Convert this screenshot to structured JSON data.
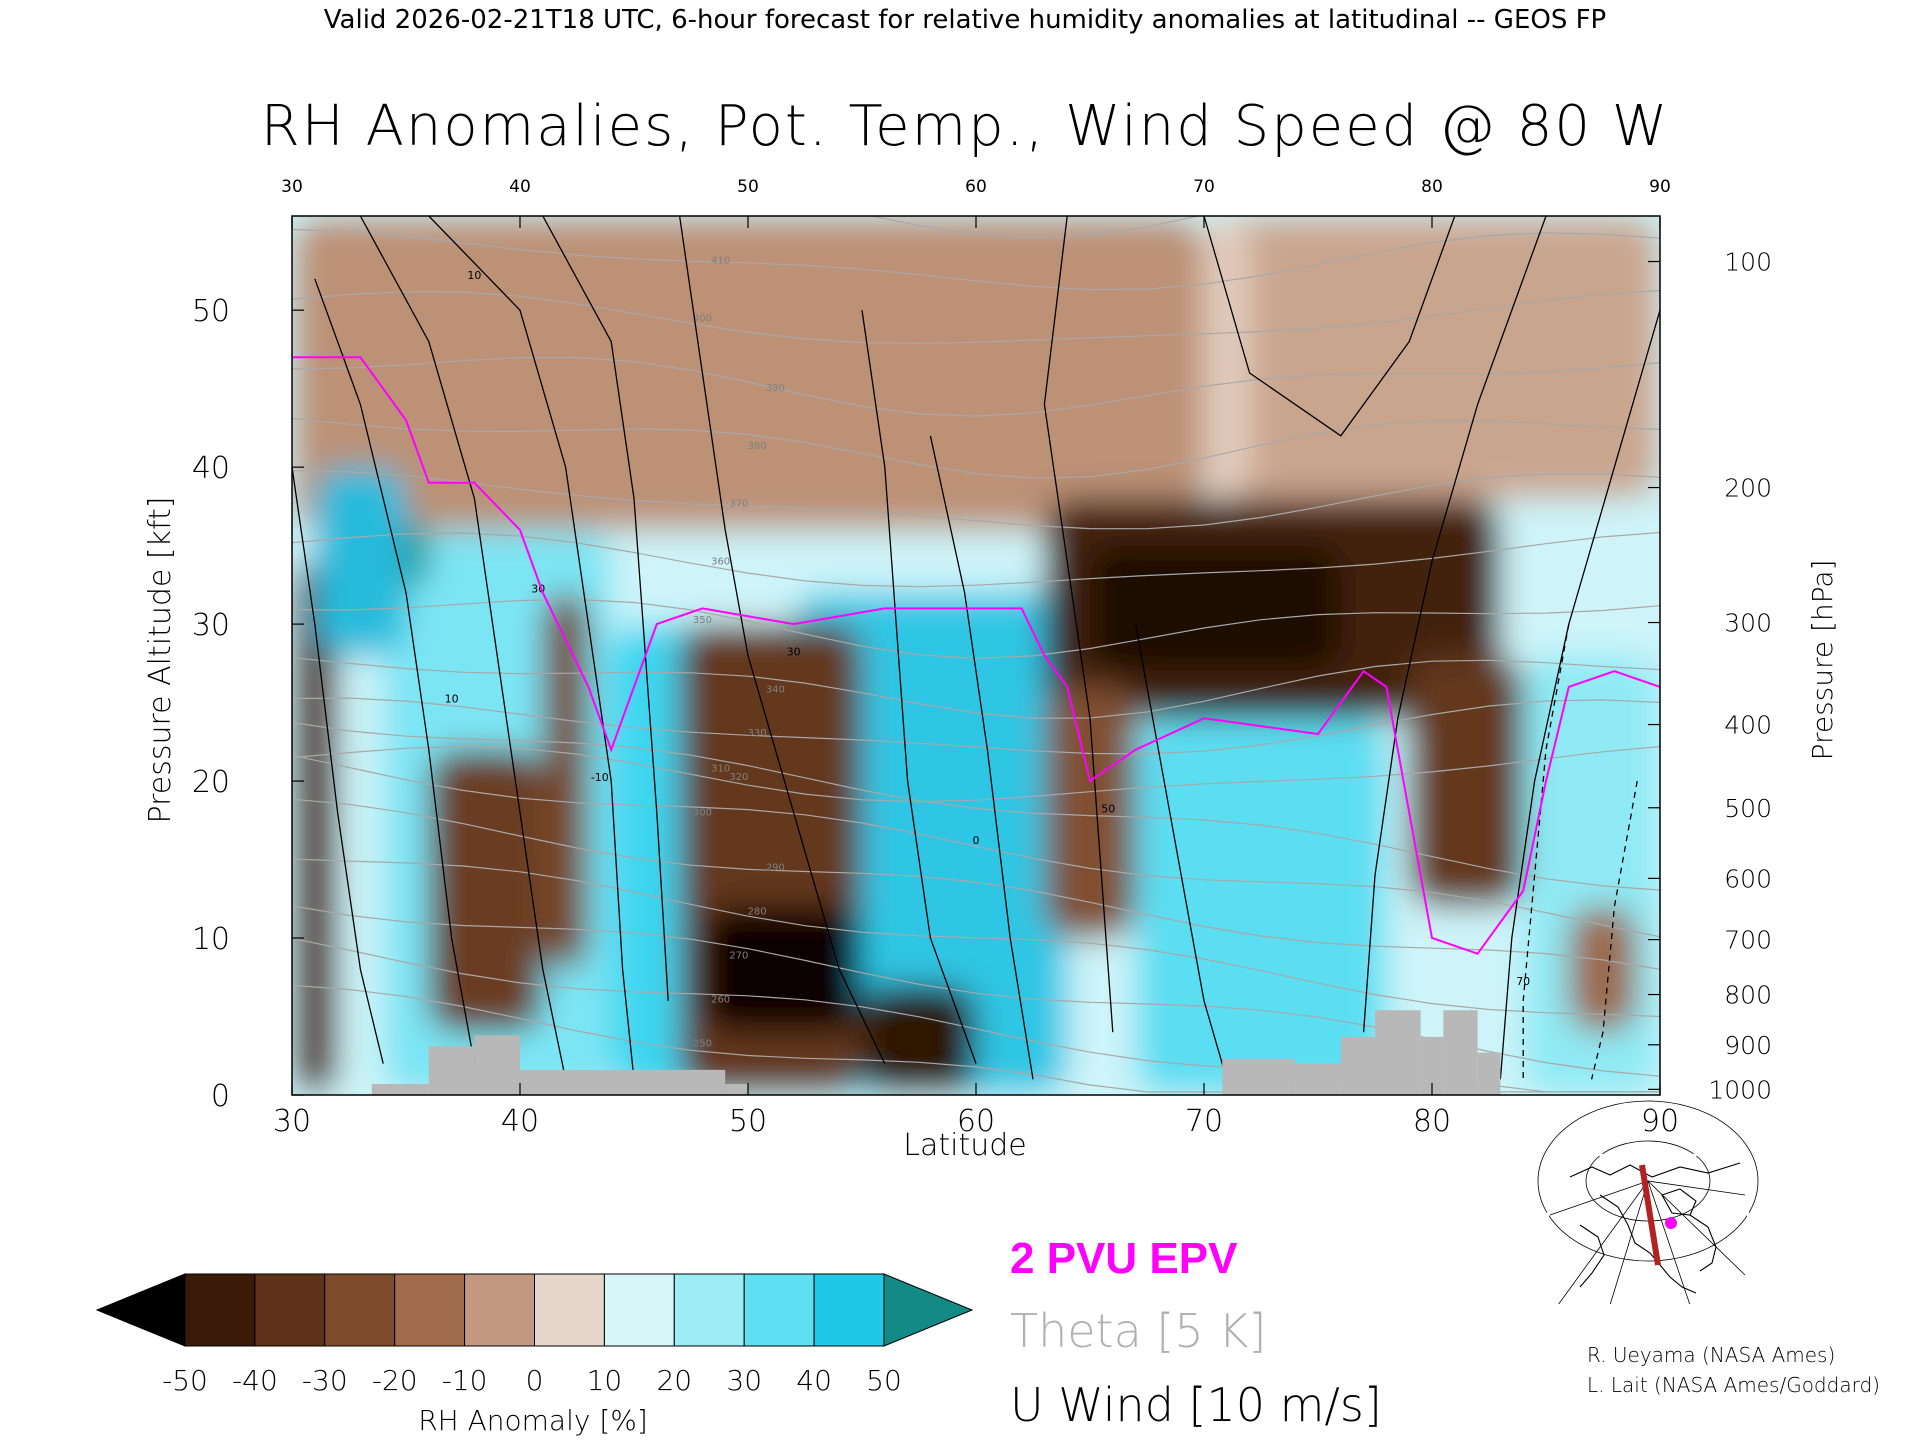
{
  "header": {
    "valid_line": "Valid 2026-02-21T18 UTC, 6-hour forecast for relative humidity anomalies at latitudinal -- GEOS FP"
  },
  "chart_data": {
    "type": "heatmap",
    "title": "RH Anomalies, Pot. Temp., Wind Speed @ 80 W",
    "xlabel": "Latitude",
    "ylabel": "Pressure Altitude [kft]",
    "ylabel_right": "Pressure [hPa]",
    "xlim": [
      30,
      90
    ],
    "ylim": [
      0,
      56
    ],
    "x_ticks": [
      30,
      40,
      50,
      60,
      70,
      80,
      90
    ],
    "y_ticks": [
      0,
      10,
      20,
      30,
      40,
      50
    ],
    "pressure_ticks": [
      {
        "label": "100",
        "kft": 53.1
      },
      {
        "label": "200",
        "kft": 38.7
      },
      {
        "label": "300",
        "kft": 30.1
      },
      {
        "label": "400",
        "kft": 23.6
      },
      {
        "label": "500",
        "kft": 18.3
      },
      {
        "label": "600",
        "kft": 13.8
      },
      {
        "label": "700",
        "kft": 9.9
      },
      {
        "label": "800",
        "kft": 6.4
      },
      {
        "label": "900",
        "kft": 3.2
      },
      {
        "label": "1000",
        "kft": 0.36
      }
    ],
    "colorbar": {
      "label": "RH Anomaly [%]",
      "ticks": [
        "-50",
        "-40",
        "-30",
        "-20",
        "-10",
        "0",
        "10",
        "20",
        "30",
        "40",
        "50"
      ],
      "colors": [
        "#000000",
        "#3a1a08",
        "#5e3218",
        "#7e4c2c",
        "#a06c4c",
        "#c29880",
        "#e6d6cc",
        "#d8f6fa",
        "#9cedf6",
        "#5ee0f2",
        "#20c8e8",
        "#0a96bc",
        "#138a86"
      ]
    },
    "legend": [
      {
        "name": "2 PVU EPV",
        "color": "#ff00ff"
      },
      {
        "name": "Theta [5 K]",
        "color": "#b0b0b0"
      },
      {
        "name": "U Wind [10 m/s]",
        "color": "#000000"
      }
    ],
    "regions": [
      {
        "lat": [
          30,
          90
        ],
        "kft": [
          0,
          56
        ],
        "anomaly": 8
      },
      {
        "lat": [
          34,
          44
        ],
        "kft": [
          0,
          36
        ],
        "anomaly": 25
      },
      {
        "lat": [
          44,
          50
        ],
        "kft": [
          0,
          30
        ],
        "anomaly": 35
      },
      {
        "lat": [
          52,
          64
        ],
        "kft": [
          0,
          32
        ],
        "anomaly": 38
      },
      {
        "lat": [
          67,
          78
        ],
        "kft": [
          0,
          24
        ],
        "anomaly": 30
      },
      {
        "lat": [
          84,
          90
        ],
        "kft": [
          0,
          28
        ],
        "anomaly": 22
      },
      {
        "lat": [
          30,
          70
        ],
        "kft": [
          36,
          56
        ],
        "anomaly": -8
      },
      {
        "lat": [
          70,
          90
        ],
        "kft": [
          38,
          56
        ],
        "anomaly": -6
      },
      {
        "lat": [
          63,
          83
        ],
        "kft": [
          24,
          38
        ],
        "anomaly": -38
      },
      {
        "lat": [
          65,
          76
        ],
        "kft": [
          27,
          35
        ],
        "anomaly": -45
      },
      {
        "lat": [
          79,
          84
        ],
        "kft": [
          12,
          28
        ],
        "anomaly": -30
      },
      {
        "lat": [
          63,
          67
        ],
        "kft": [
          10,
          26
        ],
        "anomaly": -22
      },
      {
        "lat": [
          47,
          55
        ],
        "kft": [
          0,
          30
        ],
        "anomaly": -30
      },
      {
        "lat": [
          48,
          55
        ],
        "kft": [
          4,
          12
        ],
        "anomaly": -48
      },
      {
        "lat": [
          55,
          60
        ],
        "kft": [
          0,
          7
        ],
        "anomaly": -42
      },
      {
        "lat": [
          30,
          32
        ],
        "kft": [
          0,
          34
        ],
        "anomaly": -35
      },
      {
        "lat": [
          36,
          41
        ],
        "kft": [
          4,
          22
        ],
        "anomaly": -28
      },
      {
        "lat": [
          41,
          43
        ],
        "kft": [
          8,
          32
        ],
        "anomaly": -25
      },
      {
        "lat": [
          86,
          89
        ],
        "kft": [
          4,
          12
        ],
        "anomaly": -15
      },
      {
        "lat": [
          33,
          36
        ],
        "kft": [
          32,
          37
        ],
        "anomaly": 50
      },
      {
        "lat": [
          31,
          35
        ],
        "kft": [
          28,
          40
        ],
        "anomaly": 40
      },
      {
        "lat": [
          70,
          72
        ],
        "kft": [
          38,
          56
        ],
        "anomaly": -2
      }
    ],
    "theta_levels": [
      "250",
      "260",
      "270",
      "280",
      "290",
      "300",
      "310",
      "320",
      "330",
      "340",
      "350",
      "360",
      "370",
      "380",
      "390",
      "400",
      "410",
      "420"
    ],
    "wind_labels": [
      "30",
      "10",
      "-10",
      "0",
      "50",
      "70"
    ],
    "terrain": [
      {
        "lat": [
          33.5,
          36
        ],
        "kft": 0.7
      },
      {
        "lat": [
          36,
          38
        ],
        "kft": 3.1
      },
      {
        "lat": [
          38,
          40
        ],
        "kft": 3.8
      },
      {
        "lat": [
          40,
          45.5
        ],
        "kft": 1.6
      },
      {
        "lat": [
          45.5,
          49
        ],
        "kft": 1.6
      },
      {
        "lat": [
          49,
          50
        ],
        "kft": 0.7
      },
      {
        "lat": [
          70.8,
          74
        ],
        "kft": 2.3
      },
      {
        "lat": [
          74,
          76
        ],
        "kft": 2.0
      },
      {
        "lat": [
          76,
          77.5
        ],
        "kft": 3.7
      },
      {
        "lat": [
          77.5,
          79.5
        ],
        "kft": 5.4
      },
      {
        "lat": [
          79.5,
          80.5
        ],
        "kft": 3.7
      },
      {
        "lat": [
          80.5,
          82
        ],
        "kft": 5.4
      },
      {
        "lat": [
          82,
          83
        ],
        "kft": 2.7
      }
    ],
    "pv_line": [
      [
        30,
        47
      ],
      [
        33,
        47
      ],
      [
        35,
        43
      ],
      [
        36,
        39
      ],
      [
        38,
        39
      ],
      [
        40,
        36
      ],
      [
        41,
        32
      ],
      [
        43,
        26
      ],
      [
        44,
        22
      ],
      [
        46,
        30
      ],
      [
        48,
        31
      ],
      [
        52,
        30
      ],
      [
        56,
        31
      ],
      [
        60,
        31
      ],
      [
        62,
        31
      ],
      [
        63,
        28
      ],
      [
        64,
        26
      ],
      [
        65,
        20
      ],
      [
        67,
        22
      ],
      [
        70,
        24
      ],
      [
        75,
        23
      ],
      [
        77,
        27
      ],
      [
        78,
        26
      ],
      [
        79,
        18
      ],
      [
        80,
        10
      ],
      [
        82,
        9
      ],
      [
        84,
        13
      ],
      [
        85,
        20
      ],
      [
        86,
        26
      ],
      [
        88,
        27
      ],
      [
        90,
        26
      ]
    ]
  },
  "inset_map": {
    "credits": [
      "R. Ueyama (NASA Ames)",
      "L. Lait (NASA Ames/Goddard)"
    ]
  }
}
